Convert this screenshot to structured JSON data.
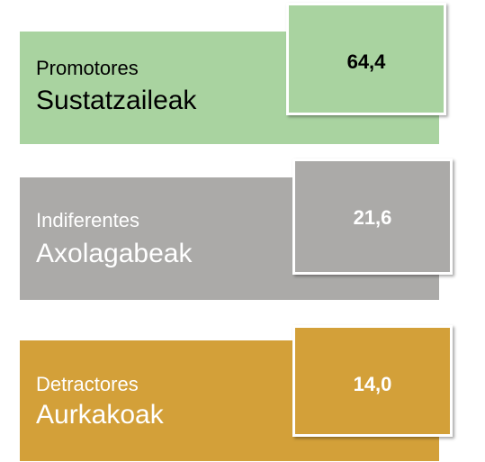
{
  "items": [
    {
      "label_es": "Promotores",
      "label_eu": "Sustatzaileak",
      "value": "64,4"
    },
    {
      "label_es": "Indiferentes",
      "label_eu": "Axolagabeak",
      "value": "21,6"
    },
    {
      "label_es": "Detractores",
      "label_eu": "Aurkakoak",
      "value": "14,0"
    }
  ]
}
